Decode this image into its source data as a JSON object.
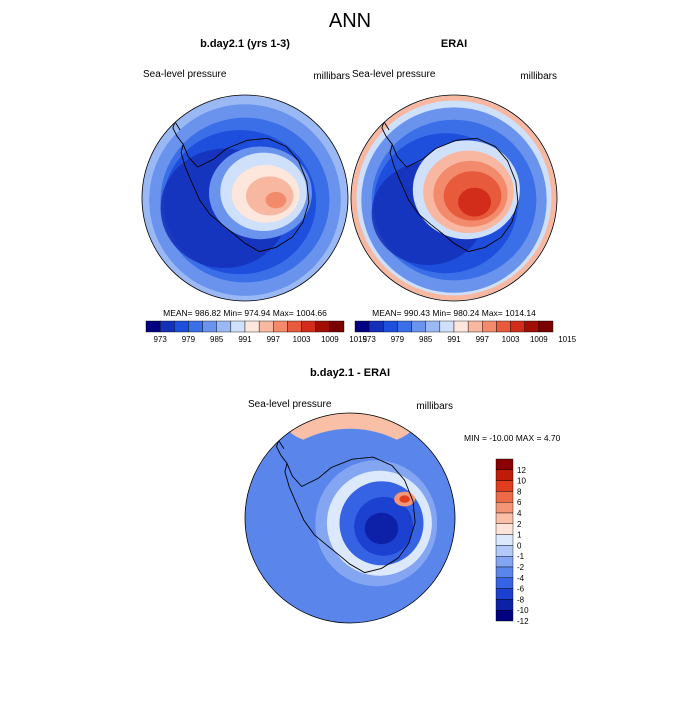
{
  "title": "ANN",
  "colors": {
    "levels13": [
      "#000080",
      "#1530b8",
      "#1e4fdc",
      "#3a6fe8",
      "#6a93ee",
      "#9ab9f4",
      "#cfe0fa",
      "#fde6dc",
      "#f8b7a0",
      "#f28a6b",
      "#e85a3c",
      "#d22d1a",
      "#a00e05",
      "#7a0000"
    ],
    "levels_diff": [
      "#000080",
      "#0d20a8",
      "#1c40d0",
      "#3563e4",
      "#5a86ec",
      "#84a6f2",
      "#b3c9f7",
      "#dce8fc",
      "#fde4da",
      "#f9bfa7",
      "#f49575",
      "#ec6a47",
      "#e03d1e",
      "#c01a08",
      "#8a0000"
    ],
    "ocean": "#2f6fe6",
    "deep": "#1533c2",
    "coast": "#000000"
  },
  "chart_data": [
    {
      "type": "polar_contour_map",
      "title": "b.day2.1 (yrs 1-3)",
      "left_label": "Sea-level pressure",
      "right_label": "millibars",
      "stats": "MEAN= 986.82   Min= 974.94   Max= 1004.66",
      "mean": 986.82,
      "min": 974.94,
      "max": 1004.66,
      "colorbar_ticks": [
        "973",
        "979",
        "985",
        "991",
        "997",
        "1003",
        "1009",
        "1015"
      ]
    },
    {
      "type": "polar_contour_map",
      "title": "ERAI",
      "left_label": "Sea-level pressure",
      "right_label": "millibars",
      "stats": "MEAN= 990.43   Min= 980.24   Max= 1014.14",
      "mean": 990.43,
      "min": 980.24,
      "max": 1014.14,
      "colorbar_ticks": [
        "973",
        "979",
        "985",
        "991",
        "997",
        "1003",
        "1009",
        "1015"
      ]
    },
    {
      "type": "polar_contour_map",
      "title": "b.day2.1 - ERAI",
      "left_label": "Sea-level pressure",
      "right_label": "millibars",
      "stats": "MIN = -10.00 MAX =   4.70",
      "min": -10.0,
      "max": 4.7,
      "colorbar_ticks": [
        "12",
        "10",
        "8",
        "6",
        "4",
        "2",
        "1",
        "0",
        "-1",
        "-2",
        "-4",
        "-6",
        "-8",
        "-10",
        "-12"
      ]
    }
  ]
}
